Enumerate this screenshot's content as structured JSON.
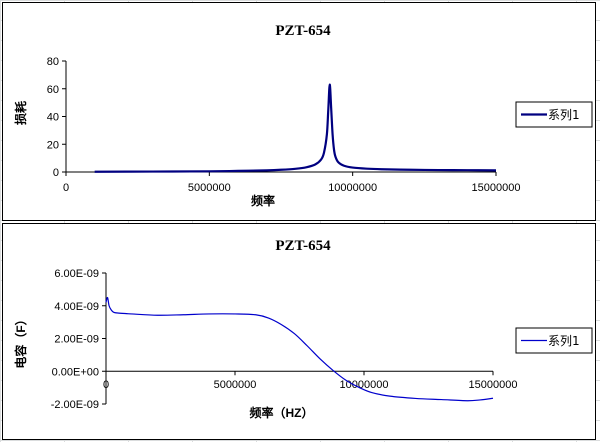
{
  "chart_data": [
    {
      "type": "line",
      "title": "PZT-654",
      "xlabel": "频率",
      "ylabel": "损耗",
      "xlim": [
        0,
        15000000
      ],
      "ylim": [
        0,
        80
      ],
      "x_ticks": [
        "0",
        "5000000",
        "10000000",
        "15000000"
      ],
      "y_ticks": [
        "0",
        "20",
        "40",
        "60",
        "80"
      ],
      "legend_position": "right",
      "color": "#000080",
      "series": [
        {
          "name": "系列1",
          "x": [
            1000000,
            3000000,
            5000000,
            6000000,
            7000000,
            7500000,
            8000000,
            8400000,
            8700000,
            8900000,
            9000000,
            9100000,
            9150000,
            9200000,
            9250000,
            9300000,
            9350000,
            9400000,
            9500000,
            9700000,
            10000000,
            10500000,
            11000000,
            12000000,
            13000000,
            14000000,
            15000000
          ],
          "y": [
            0.2,
            0.3,
            0.5,
            0.8,
            1.2,
            1.6,
            2.3,
            3.5,
            5.5,
            9,
            14,
            27,
            45,
            63,
            46,
            27,
            16,
            11,
            7,
            4.5,
            3.2,
            2.4,
            2,
            1.6,
            1.4,
            1.3,
            1.2
          ]
        }
      ]
    },
    {
      "type": "line",
      "title": "PZT-654",
      "xlabel": "频率（HZ）",
      "ylabel": "电容（F）",
      "xlim": [
        0,
        15000000
      ],
      "ylim": [
        -2e-09,
        6e-09
      ],
      "x_ticks": [
        "0",
        "5000000",
        "10000000",
        "15000000"
      ],
      "y_ticks": [
        "-2.00E-09",
        "0.00E+00",
        "2.00E-09",
        "4.00E-09",
        "6.00E-09"
      ],
      "legend_position": "right",
      "color": "#0000cc",
      "series": [
        {
          "name": "系列1",
          "x": [
            0,
            60000,
            120000,
            200000,
            300000,
            500000,
            1000000,
            2000000,
            3000000,
            4000000,
            5000000,
            5800000,
            6300000,
            6800000,
            7300000,
            7800000,
            8300000,
            8800000,
            9300000,
            9800000,
            10300000,
            11000000,
            12000000,
            13000000,
            14000000,
            14500000,
            15000000
          ],
          "y": [
            4.2e-09,
            4.5e-09,
            4e-09,
            3.75e-09,
            3.6e-09,
            3.55e-09,
            3.5e-09,
            3.42e-09,
            3.45e-09,
            3.5e-09,
            3.5e-09,
            3.45e-09,
            3.25e-09,
            2.85e-09,
            2.3e-09,
            1.55e-09,
            7.5e-10,
            5e-11,
            -5.5e-10,
            -9.8e-10,
            -1.3e-09,
            -1.52e-09,
            -1.66e-09,
            -1.73e-09,
            -1.8e-09,
            -1.75e-09,
            -1.65e-09
          ]
        }
      ]
    }
  ]
}
